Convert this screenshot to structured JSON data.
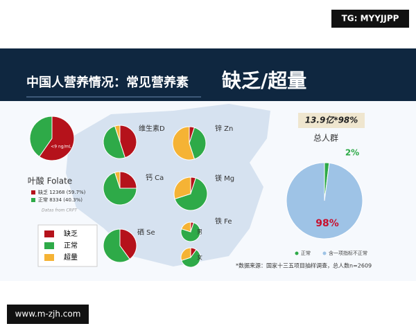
{
  "badge_top": "TG: MYYJJPP",
  "badge_bottom": "www.m-zjh.com",
  "header": {
    "title": "中国人营养情况：常见营养素",
    "highlight": "缺乏/超量"
  },
  "legend": [
    {
      "name": "缺乏",
      "color": "#b5121b"
    },
    {
      "name": "正常",
      "color": "#2eaa48"
    },
    {
      "name": "超量",
      "color": "#f5b335"
    }
  ],
  "fe_label": "铁 Fe",
  "source_note": "Datas from CRPT",
  "chart_data": [
    {
      "type": "pie",
      "title": "叶酸 Folate",
      "inner_label": "<9 ng/mL",
      "values": [
        59.7,
        40.3
      ],
      "legend": [
        {
          "label": "缺乏 12368 (59.7%)",
          "color": "#b5121b"
        },
        {
          "label": "正常 8334 (40.3%)",
          "color": "#2eaa48"
        }
      ]
    },
    {
      "type": "pie",
      "title": "维生素D",
      "values": [
        45,
        50,
        5
      ]
    },
    {
      "type": "pie",
      "title": "锌 Zn",
      "values": [
        5,
        40,
        55
      ]
    },
    {
      "type": "pie",
      "title": "钙 Ca",
      "values": [
        25,
        70,
        5
      ]
    },
    {
      "type": "pie",
      "title": "镁 Mg",
      "values": [
        5,
        65,
        30
      ]
    },
    {
      "type": "pie",
      "title": "硒 Se",
      "values": [
        40,
        60,
        0
      ]
    },
    {
      "type": "pie",
      "title": "男",
      "values": [
        5,
        75,
        20
      ]
    },
    {
      "type": "pie",
      "title": "女",
      "values": [
        10,
        60,
        30
      ]
    },
    {
      "type": "pie",
      "title": "总人群",
      "subtitle": "13.9亿*98%",
      "values": [
        2,
        98
      ],
      "value_labels": [
        "2%",
        "98%"
      ],
      "series": [
        {
          "name": "正常",
          "color": "#2eaa48"
        },
        {
          "name": "含一项指标不正常",
          "color": "#9ec3e6"
        }
      ],
      "note": "*数据来源：国家十三五项目抽样调查，总人数n=2609"
    }
  ]
}
